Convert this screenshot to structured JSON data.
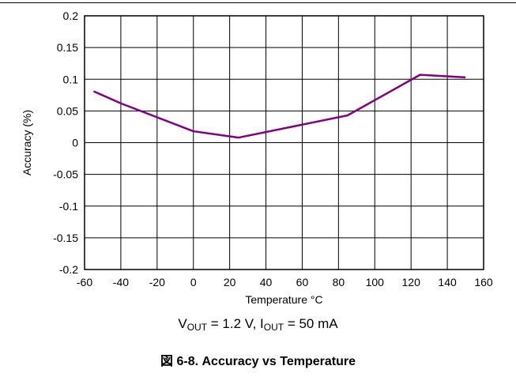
{
  "chart_data": {
    "type": "line",
    "title": "",
    "xlabel": "Temperature °C",
    "ylabel": "Accuracy (%)",
    "xlim": [
      -60,
      160
    ],
    "ylim": [
      -0.2,
      0.2
    ],
    "x_ticks": [
      -60,
      -40,
      -20,
      0,
      20,
      40,
      60,
      80,
      100,
      120,
      140,
      160
    ],
    "x_tick_labels": [
      "-60",
      "-40",
      "-20",
      "0",
      "20",
      "40",
      "60",
      "80",
      "100",
      "120",
      "140",
      "160"
    ],
    "y_ticks": [
      -0.2,
      -0.15,
      -0.1,
      -0.05,
      0,
      0.05,
      0.1,
      0.15,
      0.2
    ],
    "y_tick_labels": [
      "-0.2",
      "-0.15",
      "-0.1",
      "-0.05",
      "0",
      "0.05",
      "0.1",
      "0.15",
      "0.2"
    ],
    "grid": true,
    "series": [
      {
        "color": "#800080",
        "x": [
          -55,
          -40,
          0,
          25,
          85,
          125,
          150
        ],
        "y": [
          0.081,
          0.062,
          0.018,
          0.008,
          0.043,
          0.107,
          0.103
        ]
      }
    ]
  },
  "condition": {
    "v_main": "V",
    "v_sub": "OUT",
    "v_rest": " = 1.2 V, I",
    "i_sub": "OUT",
    "i_rest": " = 50 mA"
  },
  "caption": "図 6-8. Accuracy vs Temperature"
}
